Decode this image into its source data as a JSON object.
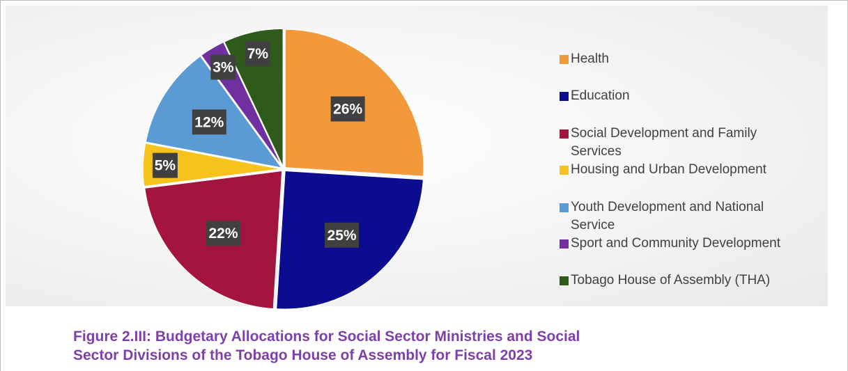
{
  "chart_data": {
    "type": "pie",
    "categories": [
      "Health",
      "Education",
      "Social Development and Family Services",
      "Housing and Urban Development",
      "Youth Development and National Service",
      "Sport and Community Development",
      "Tobago House of Assembly (THA)"
    ],
    "values": [
      26,
      25,
      22,
      5,
      12,
      3,
      7
    ],
    "data_labels": [
      "26%",
      "25%",
      "22%",
      "5%",
      "12%",
      "3%",
      "7%"
    ],
    "colors": [
      "#F29A3B",
      "#0B0C8F",
      "#A3153F",
      "#F7C21C",
      "#5B9BD5",
      "#7030A0",
      "#2E5A1C"
    ],
    "legend_position": "right",
    "start_angle_degrees": 0,
    "direction": "clockwise"
  },
  "legend": {
    "items": [
      "Health",
      "Education",
      "Social Development and Family Services",
      "Housing and Urban Development",
      "Youth Development and National Service",
      "Sport and Community Development",
      "Tobago House of Assembly (THA)"
    ]
  },
  "caption": {
    "line1": "Figure 2.III: Budgetary Allocations for Social Sector Ministries and Social",
    "line2": "Sector Divisions of the Tobago House of Assembly for Fiscal 2023"
  }
}
